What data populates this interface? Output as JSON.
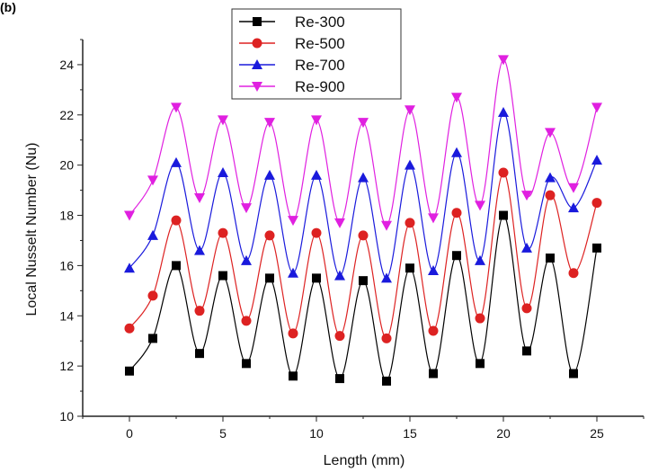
{
  "panel_label": "(b)",
  "chart_data": {
    "type": "line",
    "title": "",
    "xlabel": "Length (mm)",
    "ylabel": "Local Nusselt Number (Nu)",
    "xlim": [
      -2.5,
      27.5
    ],
    "ylim": [
      10,
      25
    ],
    "x_ticks": [
      0,
      5,
      10,
      15,
      20,
      25
    ],
    "y_ticks": [
      10,
      12,
      14,
      16,
      18,
      20,
      22,
      24
    ],
    "grid": false,
    "legend_position": "top-center",
    "x": [
      0,
      1.25,
      2.5,
      3.75,
      5,
      6.25,
      7.5,
      8.75,
      10,
      11.25,
      12.5,
      13.75,
      15,
      16.25,
      17.5,
      18.75,
      20,
      21.25,
      22.5,
      23.75,
      25
    ],
    "series": [
      {
        "name": "Re-300",
        "marker": "square",
        "color": "#000000",
        "values": [
          11.8,
          13.1,
          16.0,
          12.5,
          15.6,
          12.1,
          15.5,
          11.6,
          15.5,
          11.5,
          15.4,
          11.4,
          15.9,
          11.7,
          16.4,
          12.1,
          18.0,
          12.6,
          16.3,
          11.7,
          16.7
        ]
      },
      {
        "name": "Re-500",
        "marker": "circle",
        "color": "#dd2222",
        "values": [
          13.5,
          14.8,
          17.8,
          14.2,
          17.3,
          13.8,
          17.2,
          13.3,
          17.3,
          13.2,
          17.2,
          13.1,
          17.7,
          13.4,
          18.1,
          13.9,
          19.7,
          14.3,
          18.8,
          15.7,
          18.5
        ]
      },
      {
        "name": "Re-700",
        "marker": "triangle-up",
        "color": "#1a1adc",
        "values": [
          15.9,
          17.2,
          20.1,
          16.6,
          19.7,
          16.2,
          19.6,
          15.7,
          19.6,
          15.6,
          19.5,
          15.5,
          20.0,
          15.8,
          20.5,
          16.2,
          22.1,
          16.7,
          19.5,
          18.3,
          20.2
        ]
      },
      {
        "name": "Re-900",
        "marker": "triangle-down",
        "color": "#e020e0",
        "values": [
          18.0,
          19.4,
          22.3,
          18.7,
          21.8,
          18.3,
          21.7,
          17.8,
          21.8,
          17.7,
          21.7,
          17.6,
          22.2,
          17.9,
          22.7,
          18.4,
          24.2,
          18.8,
          21.3,
          19.1,
          22.3
        ]
      }
    ]
  }
}
